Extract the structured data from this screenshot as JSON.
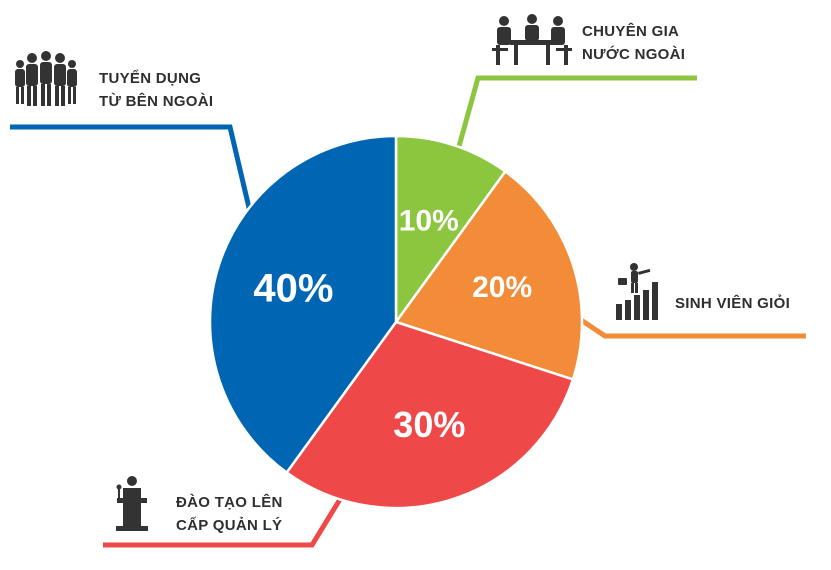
{
  "chart_data": {
    "type": "pie",
    "slices": [
      {
        "label_lines": [
          "CHUYÊN GIA",
          "NƯỚC NGOÀI"
        ],
        "value": 10,
        "display": "10%",
        "color": "#8cc63f",
        "icon": "meeting-table-icon"
      },
      {
        "label_lines": [
          "SINH VIÊN GIỎI"
        ],
        "value": 20,
        "display": "20%",
        "color": "#f28c38",
        "icon": "growth-bars-climber-icon"
      },
      {
        "label_lines": [
          "ĐÀO TẠO LÊN",
          "CẤP QUẢN LÝ"
        ],
        "value": 30,
        "display": "30%",
        "color": "#ef4848",
        "icon": "podium-speaker-icon"
      },
      {
        "label_lines": [
          "TUYỂN DỤNG",
          "TỪ BÊN NGOÀI"
        ],
        "value": 40,
        "display": "40%",
        "color": "#0066b3",
        "icon": "business-team-icon"
      }
    ]
  },
  "colors": {
    "text": "#2f2f2f",
    "icon": "#333333",
    "slice_border": "#ffffff"
  }
}
